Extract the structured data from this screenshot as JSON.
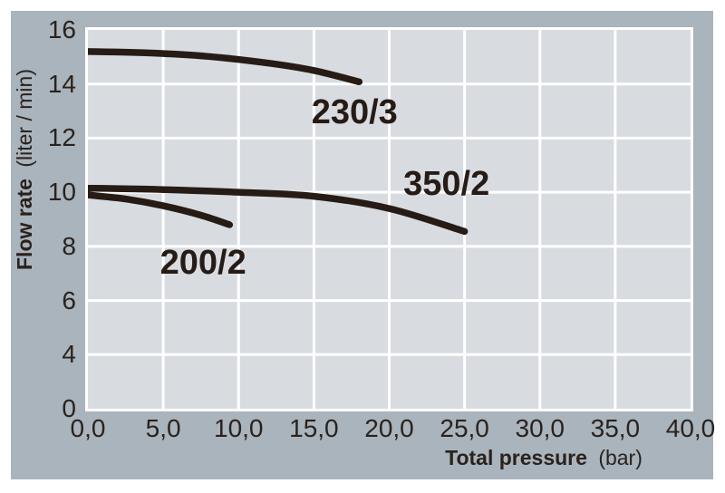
{
  "chart_data": {
    "type": "line",
    "title": "",
    "x_axis": {
      "label": "Total pressure",
      "unit": "(bar)",
      "tick_labels": [
        "0,0",
        "5,0",
        "10,0",
        "15,0",
        "20,0",
        "25,0",
        "30,0",
        "35,0",
        "40,0"
      ],
      "tick_values": [
        0,
        5,
        10,
        15,
        20,
        25,
        30,
        35,
        40
      ],
      "min": 0,
      "max": 40
    },
    "y_axis": {
      "label": "Flow rate",
      "unit": "(liter / min)",
      "tick_labels": [
        "16",
        "14",
        "12",
        "10",
        "8",
        "6",
        "4",
        "0"
      ],
      "top_value": 16,
      "units_per_gridline": 2
    },
    "grid": true,
    "legend_position": "inline-labels",
    "series": [
      {
        "name": "230/3",
        "points": [
          [
            0,
            15.2
          ],
          [
            4,
            15.15
          ],
          [
            8,
            15.02
          ],
          [
            12,
            14.77
          ],
          [
            15,
            14.5
          ],
          [
            18,
            14.08
          ]
        ],
        "label_at": [
          17.7,
          12.95
        ]
      },
      {
        "name": "350/2",
        "points": [
          [
            0,
            10.15
          ],
          [
            5,
            10.1
          ],
          [
            10,
            10.0
          ],
          [
            15,
            9.85
          ],
          [
            20,
            9.4
          ],
          [
            25,
            8.55
          ]
        ],
        "label_at": [
          23.8,
          10.3
        ]
      },
      {
        "name": "200/2",
        "points": [
          [
            0,
            9.9
          ],
          [
            2.5,
            9.75
          ],
          [
            5,
            9.5
          ],
          [
            7.5,
            9.15
          ],
          [
            9.4,
            8.8
          ]
        ],
        "label_at": [
          7.65,
          7.4
        ]
      }
    ]
  },
  "colors": {
    "page_bg": "#ffffff",
    "panel_bg": "#a9b4bd",
    "plot_bg": "#d8dce1",
    "grid": "#ffffff",
    "curve": "#261c15",
    "text": "#2b221c"
  }
}
